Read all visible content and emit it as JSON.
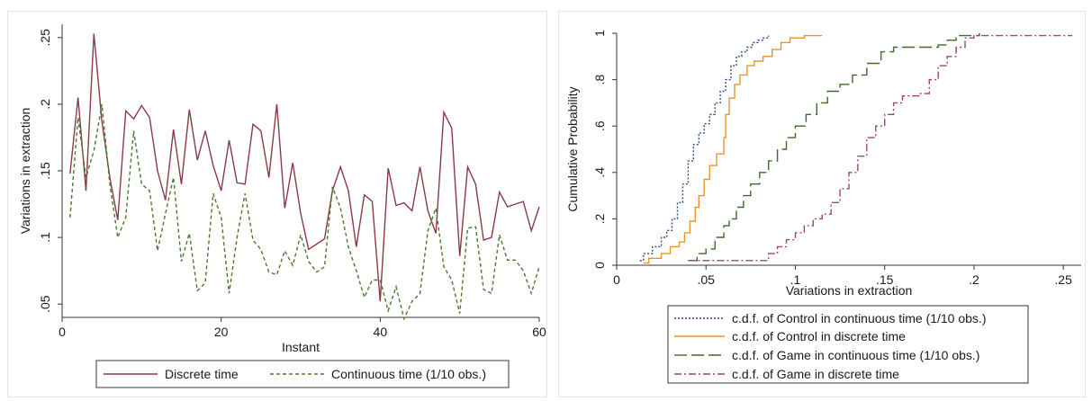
{
  "chart_data": [
    {
      "type": "line",
      "xlabel": "Instant",
      "ylabel": "Variations in extraction",
      "xlim": [
        0,
        60
      ],
      "ylim": [
        0.04,
        0.26
      ],
      "xticks": [
        0,
        20,
        40,
        60
      ],
      "xtick_labels": [
        "0",
        "20",
        "40",
        "60"
      ],
      "yticks": [
        0.05,
        0.1,
        0.15,
        0.2,
        0.25
      ],
      "ytick_labels": [
        ".05",
        ".1",
        ".15",
        ".2",
        ".25"
      ],
      "grid": false,
      "legend_position": "bottom",
      "series": [
        {
          "name": "Discrete time",
          "color": "#8b3a45",
          "style": "solid",
          "x": [
            1,
            2,
            3,
            4,
            5,
            6,
            7,
            8,
            9,
            10,
            11,
            12,
            13,
            14,
            15,
            16,
            17,
            18,
            19,
            20,
            21,
            22,
            23,
            24,
            25,
            26,
            27,
            28,
            29,
            30,
            31,
            32,
            33,
            34,
            35,
            36,
            37,
            38,
            39,
            40,
            41,
            42,
            43,
            44,
            45,
            46,
            47,
            48,
            49,
            50,
            51,
            52,
            53,
            54,
            55,
            56,
            57,
            58,
            59,
            60
          ],
          "values": [
            0.148,
            0.205,
            0.135,
            0.253,
            0.187,
            0.145,
            0.113,
            0.195,
            0.189,
            0.199,
            0.19,
            0.15,
            0.128,
            0.181,
            0.14,
            0.196,
            0.158,
            0.18,
            0.154,
            0.135,
            0.173,
            0.141,
            0.14,
            0.185,
            0.18,
            0.145,
            0.2,
            0.122,
            0.156,
            0.118,
            0.091,
            0.095,
            0.099,
            0.135,
            0.153,
            0.135,
            0.093,
            0.132,
            0.127,
            0.052,
            0.152,
            0.124,
            0.126,
            0.12,
            0.153,
            0.12,
            0.103,
            0.194,
            0.182,
            0.086,
            0.153,
            0.14,
            0.098,
            0.1,
            0.134,
            0.123,
            0.125,
            0.127,
            0.105,
            0.123
          ]
        },
        {
          "name": "Continuous time (1/10 obs.)",
          "color": "#4a7a2c",
          "style": "dashed",
          "x": [
            1,
            2,
            3,
            4,
            5,
            6,
            7,
            8,
            9,
            10,
            11,
            12,
            13,
            14,
            15,
            16,
            17,
            18,
            19,
            20,
            21,
            22,
            23,
            24,
            25,
            26,
            27,
            28,
            29,
            30,
            31,
            32,
            33,
            34,
            35,
            36,
            37,
            38,
            39,
            40,
            41,
            42,
            43,
            44,
            45,
            46,
            47,
            48,
            49,
            50,
            51,
            52,
            53,
            54,
            55,
            56,
            57,
            58,
            59,
            60
          ],
          "values": [
            0.115,
            0.19,
            0.145,
            0.165,
            0.2,
            0.14,
            0.1,
            0.115,
            0.18,
            0.14,
            0.135,
            0.09,
            0.118,
            0.145,
            0.082,
            0.103,
            0.06,
            0.066,
            0.133,
            0.115,
            0.058,
            0.1,
            0.133,
            0.098,
            0.091,
            0.074,
            0.072,
            0.09,
            0.079,
            0.102,
            0.082,
            0.074,
            0.078,
            0.138,
            0.122,
            0.093,
            0.075,
            0.055,
            0.068,
            0.068,
            0.045,
            0.063,
            0.039,
            0.052,
            0.058,
            0.105,
            0.122,
            0.078,
            0.068,
            0.043,
            0.107,
            0.108,
            0.061,
            0.058,
            0.102,
            0.083,
            0.083,
            0.075,
            0.058,
            0.078
          ]
        }
      ]
    },
    {
      "type": "line",
      "step": true,
      "xlabel": "Variations in extraction",
      "ylabel": "Cumulative Probability",
      "xlim": [
        0,
        0.26
      ],
      "ylim": [
        0,
        1
      ],
      "xticks": [
        0,
        0.05,
        0.1,
        0.15,
        0.2,
        0.25
      ],
      "xtick_labels": [
        "0",
        ".05",
        ".1",
        ".15",
        ".2",
        ".25"
      ],
      "yticks": [
        0,
        0.2,
        0.4,
        0.6,
        0.8,
        1
      ],
      "ytick_labels": [
        "0",
        ".2",
        ".4",
        ".6",
        ".8",
        "1"
      ],
      "grid": false,
      "legend_position": "bottom",
      "series": [
        {
          "name": "c.d.f. of  Control in continuous time (1/10 obs.)",
          "color": "#2a4a8c",
          "style": "dotted",
          "x": [
            0.013,
            0.015,
            0.02,
            0.025,
            0.028,
            0.031,
            0.034,
            0.037,
            0.04,
            0.043,
            0.046,
            0.049,
            0.052,
            0.055,
            0.058,
            0.061,
            0.064,
            0.067,
            0.07,
            0.073,
            0.076,
            0.079,
            0.082,
            0.085
          ],
          "values": [
            0.02,
            0.05,
            0.08,
            0.12,
            0.15,
            0.2,
            0.27,
            0.35,
            0.45,
            0.52,
            0.57,
            0.61,
            0.65,
            0.7,
            0.75,
            0.8,
            0.86,
            0.9,
            0.92,
            0.94,
            0.96,
            0.97,
            0.98,
            0.99
          ]
        },
        {
          "name": "c.d.f. of  Control in discrete time",
          "color": "#e8952a",
          "style": "solid",
          "x": [
            0.015,
            0.018,
            0.025,
            0.03,
            0.035,
            0.038,
            0.041,
            0.044,
            0.046,
            0.049,
            0.052,
            0.056,
            0.06,
            0.061,
            0.063,
            0.066,
            0.069,
            0.073,
            0.077,
            0.082,
            0.087,
            0.092,
            0.097,
            0.105,
            0.115
          ],
          "values": [
            0.01,
            0.03,
            0.05,
            0.08,
            0.1,
            0.14,
            0.19,
            0.25,
            0.3,
            0.37,
            0.43,
            0.48,
            0.55,
            0.65,
            0.72,
            0.78,
            0.82,
            0.86,
            0.88,
            0.9,
            0.93,
            0.96,
            0.98,
            0.99,
            0.99
          ]
        },
        {
          "name": "c.d.f. of  Game in continuous time (1/10 obs.)",
          "color": "#3f6b2a",
          "style": "longdash",
          "x": [
            0.04,
            0.045,
            0.05,
            0.055,
            0.06,
            0.063,
            0.067,
            0.071,
            0.075,
            0.08,
            0.085,
            0.09,
            0.095,
            0.1,
            0.106,
            0.112,
            0.118,
            0.125,
            0.132,
            0.14,
            0.148,
            0.155,
            0.17,
            0.18,
            0.185,
            0.19,
            0.2,
            0.203
          ],
          "values": [
            0.02,
            0.05,
            0.07,
            0.12,
            0.17,
            0.2,
            0.25,
            0.3,
            0.35,
            0.4,
            0.45,
            0.5,
            0.55,
            0.6,
            0.65,
            0.7,
            0.75,
            0.78,
            0.82,
            0.87,
            0.92,
            0.94,
            0.94,
            0.95,
            0.97,
            0.99,
            0.99,
            1.0
          ]
        },
        {
          "name": "c.d.f. of  Game in discrete time",
          "color": "#a0446a",
          "style": "dashdot",
          "x": [
            0.04,
            0.08,
            0.085,
            0.09,
            0.095,
            0.1,
            0.105,
            0.11,
            0.115,
            0.12,
            0.125,
            0.13,
            0.135,
            0.14,
            0.145,
            0.15,
            0.155,
            0.16,
            0.165,
            0.17,
            0.175,
            0.18,
            0.185,
            0.19,
            0.195,
            0.2,
            0.21,
            0.225,
            0.24,
            0.255
          ],
          "values": [
            0.02,
            0.02,
            0.05,
            0.08,
            0.11,
            0.14,
            0.17,
            0.2,
            0.22,
            0.27,
            0.33,
            0.4,
            0.47,
            0.55,
            0.6,
            0.65,
            0.7,
            0.73,
            0.73,
            0.74,
            0.8,
            0.86,
            0.9,
            0.94,
            0.98,
            0.99,
            0.99,
            0.99,
            0.99,
            0.99
          ]
        }
      ]
    }
  ]
}
